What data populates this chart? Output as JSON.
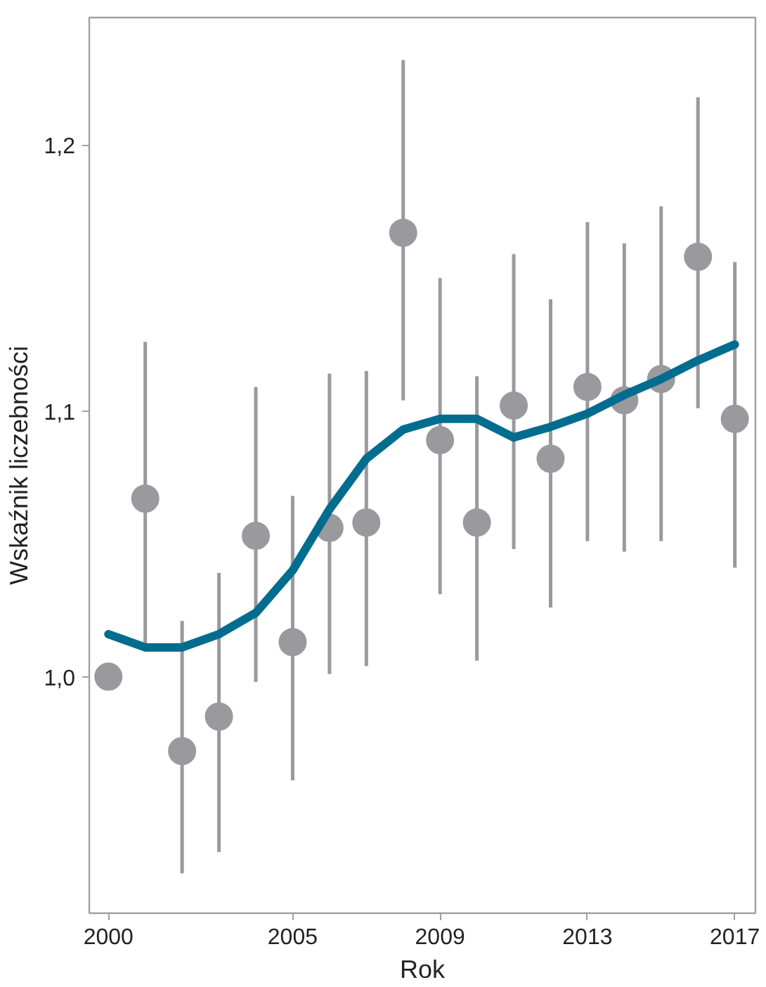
{
  "chart_data": {
    "type": "scatter",
    "xlabel": "Rok",
    "ylabel": "Wskaźnik liczebności",
    "x": [
      2000,
      2001,
      2002,
      2003,
      2004,
      2005,
      2006,
      2007,
      2008,
      2009,
      2010,
      2011,
      2012,
      2013,
      2014,
      2015,
      2016,
      2017
    ],
    "series": [
      {
        "color": "#9a9a9e",
        "marker": "circle",
        "values": [
          1.0,
          1.067,
          0.972,
          0.985,
          1.053,
          1.013,
          1.056,
          1.058,
          1.167,
          1.089,
          1.058,
          1.102,
          1.082,
          1.109,
          1.104,
          1.112,
          1.158,
          1.097
        ],
        "errors": [
          null,
          [
            1.01,
            1.126
          ],
          [
            0.926,
            1.021
          ],
          [
            0.934,
            1.039
          ],
          [
            0.998,
            1.109
          ],
          [
            0.961,
            1.068
          ],
          [
            1.001,
            1.114
          ],
          [
            1.004,
            1.115
          ],
          [
            1.104,
            1.232
          ],
          [
            1.031,
            1.15
          ],
          [
            1.006,
            1.113
          ],
          [
            1.048,
            1.159
          ],
          [
            1.026,
            1.142
          ],
          [
            1.051,
            1.171
          ],
          [
            1.047,
            1.163
          ],
          [
            1.051,
            1.177
          ],
          [
            1.101,
            1.218
          ],
          [
            1.041,
            1.156
          ]
        ]
      },
      {
        "type": "line",
        "color": "#006d8f",
        "line_style": "solid",
        "values": [
          1.016,
          1.011,
          1.011,
          1.016,
          1.024,
          1.04,
          1.063,
          1.082,
          1.093,
          1.097,
          1.097,
          1.09,
          1.094,
          1.099,
          1.106,
          1.112,
          1.119,
          1.125
        ]
      }
    ],
    "xlim": [
      1999.48,
      2017.56
    ],
    "ylim": [
      0.911,
      1.248
    ],
    "xticks": [
      2000,
      2005,
      2009,
      2013,
      2017
    ],
    "yticks": [
      {
        "value": 1.0,
        "label": "1,0"
      },
      {
        "value": 1.1,
        "label": "1,1"
      },
      {
        "value": 1.2,
        "label": "1,2"
      }
    ],
    "grid": false
  }
}
